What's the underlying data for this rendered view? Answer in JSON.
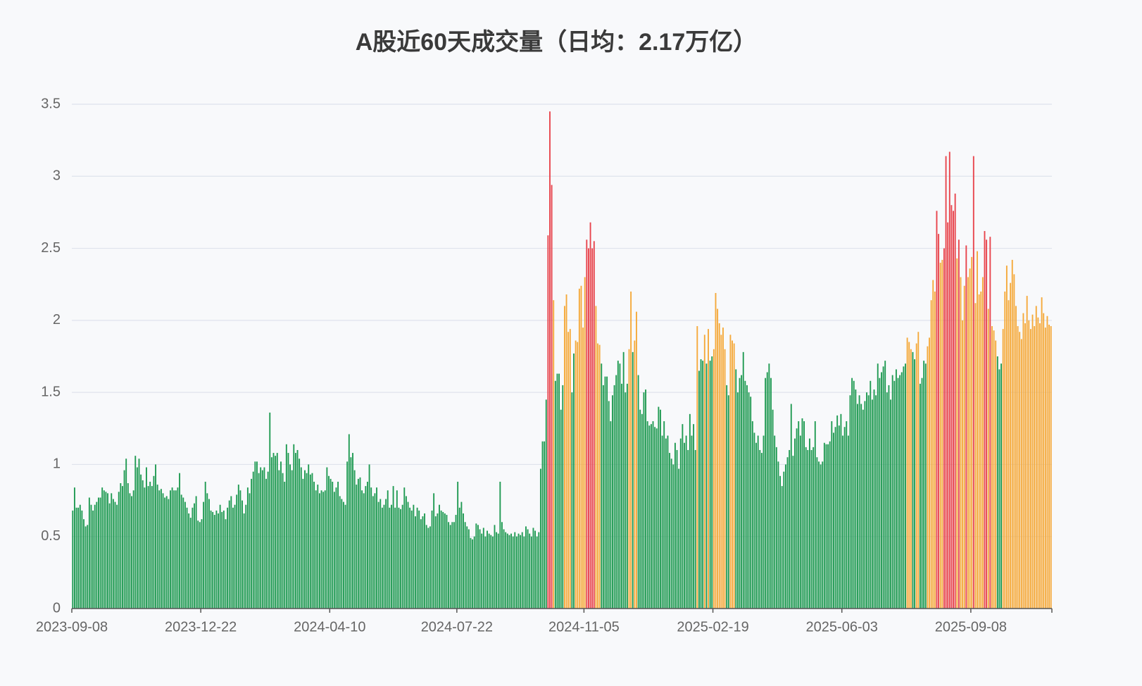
{
  "chart_data": {
    "type": "bar",
    "title": "A股近60天成交量（日均：2.17万亿）",
    "categories": [
      "2023-09-08",
      null,
      null,
      null,
      null,
      null,
      null,
      null,
      null,
      null,
      null,
      null,
      null,
      null,
      null,
      null,
      null,
      null,
      null,
      null,
      null,
      null,
      null,
      null,
      null,
      null,
      null,
      null,
      null,
      null,
      null,
      null,
      null,
      null,
      null,
      null,
      null,
      null,
      null,
      null,
      null,
      null,
      null,
      null,
      null,
      null,
      null,
      null,
      null,
      null,
      null,
      null,
      null,
      null,
      null,
      null,
      null,
      null,
      null,
      null,
      null,
      null,
      null,
      null,
      null,
      null,
      null,
      null,
      null,
      null,
      "2023-12-22",
      null,
      null,
      null,
      null,
      null,
      null,
      null,
      null,
      null,
      null,
      null,
      null,
      null,
      null,
      null,
      null,
      null,
      null,
      null,
      null,
      null,
      null,
      null,
      null,
      null,
      null,
      null,
      null,
      null,
      null,
      null,
      null,
      null,
      null,
      null,
      null,
      null,
      null,
      null,
      null,
      null,
      null,
      null,
      null,
      null,
      null,
      null,
      null,
      null,
      null,
      null,
      null,
      null,
      null,
      null,
      null,
      null,
      null,
      null,
      null,
      null,
      null,
      null,
      null,
      null,
      null,
      null,
      null,
      null,
      "2024-04-10",
      null,
      null,
      null,
      null,
      null,
      null,
      null,
      null,
      null,
      null,
      null,
      null,
      null,
      null,
      null,
      null,
      null,
      null,
      null,
      null,
      null,
      null,
      null,
      null,
      null,
      null,
      null,
      null,
      null,
      null,
      null,
      null,
      null,
      null,
      null,
      null,
      null,
      null,
      null,
      null,
      null,
      null,
      null,
      null,
      null,
      null,
      null,
      null,
      null,
      null,
      null,
      null,
      null,
      null,
      null,
      null,
      null,
      null,
      null,
      null,
      null,
      null,
      null,
      null,
      null,
      null,
      null,
      null,
      "2024-07-22",
      null,
      null,
      null,
      null,
      null,
      null,
      null,
      null,
      null,
      null,
      null,
      null,
      null,
      null,
      null,
      null,
      null,
      null,
      null,
      null,
      null,
      null,
      null,
      null,
      null,
      null,
      null,
      null,
      null,
      null,
      null,
      null,
      null,
      null,
      null,
      null,
      null,
      null,
      null,
      null,
      null,
      null,
      null,
      null,
      null,
      null,
      null,
      null,
      null,
      null,
      null,
      null,
      null,
      null,
      null,
      null,
      null,
      null,
      null,
      null,
      null,
      null,
      null,
      null,
      null,
      null,
      null,
      null,
      "2024-11-05",
      null,
      null,
      null,
      null,
      null,
      null,
      null,
      null,
      null,
      null,
      null,
      null,
      null,
      null,
      null,
      null,
      null,
      null,
      null,
      null,
      null,
      null,
      null,
      null,
      null,
      null,
      null,
      null,
      null,
      null,
      null,
      null,
      null,
      null,
      null,
      null,
      null,
      null,
      null,
      null,
      null,
      null,
      null,
      null,
      null,
      null,
      null,
      null,
      null,
      null,
      null,
      null,
      null,
      null,
      null,
      null,
      null,
      null,
      null,
      null,
      null,
      null,
      null,
      null,
      null,
      null,
      null,
      null,
      null,
      "2025-02-19",
      null,
      null,
      null,
      null,
      null,
      null,
      null,
      null,
      null,
      null,
      null,
      null,
      null,
      null,
      null,
      null,
      null,
      null,
      null,
      null,
      null,
      null,
      null,
      null,
      null,
      null,
      null,
      null,
      null,
      null,
      null,
      null,
      null,
      null,
      null,
      null,
      null,
      null,
      null,
      null,
      null,
      null,
      null,
      null,
      null,
      null,
      null,
      null,
      null,
      null,
      null,
      null,
      null,
      null,
      null,
      null,
      null,
      null,
      null,
      null,
      null,
      null,
      null,
      null,
      null,
      null,
      null,
      null,
      null,
      "2025-06-03",
      null,
      null,
      null,
      null,
      null,
      null,
      null,
      null,
      null,
      null,
      null,
      null,
      null,
      null,
      null,
      null,
      null,
      null,
      null,
      null,
      null,
      null,
      null,
      null,
      null,
      null,
      null,
      null,
      null,
      null,
      null,
      null,
      null,
      null,
      null,
      null,
      null,
      null,
      null,
      null,
      null,
      null,
      null,
      null,
      null,
      null,
      null,
      null,
      null,
      null,
      null,
      null,
      null,
      null,
      null,
      null,
      null,
      null,
      null,
      null,
      null,
      null,
      null,
      null,
      null,
      null,
      null,
      null,
      null,
      "2025-09-08",
      null,
      null,
      null,
      null,
      null,
      null,
      null,
      null,
      null,
      null,
      null,
      null,
      null,
      null,
      null,
      null,
      null,
      null,
      null,
      null,
      null,
      null,
      null,
      null,
      null,
      null,
      null,
      null,
      null,
      null,
      null,
      null,
      null,
      null,
      null,
      null,
      null,
      null,
      null,
      null,
      null,
      null,
      null
    ],
    "values": [
      0.68,
      0.84,
      0.7,
      0.7,
      0.72,
      0.68,
      0.62,
      0.57,
      0.58,
      0.77,
      0.72,
      0.68,
      0.72,
      0.74,
      0.77,
      0.77,
      0.84,
      0.82,
      0.81,
      0.8,
      0.73,
      0.8,
      0.76,
      0.74,
      0.72,
      0.81,
      0.87,
      0.85,
      0.96,
      1.04,
      0.87,
      0.8,
      0.78,
      0.82,
      1.06,
      0.98,
      1.04,
      0.93,
      0.89,
      0.84,
      0.98,
      0.85,
      0.88,
      0.85,
      0.92,
      1.0,
      0.86,
      0.82,
      0.83,
      0.8,
      0.77,
      0.78,
      0.76,
      0.82,
      0.84,
      0.82,
      0.82,
      0.84,
      0.94,
      0.79,
      0.77,
      0.74,
      0.7,
      0.66,
      0.63,
      0.7,
      0.73,
      0.78,
      0.61,
      0.6,
      0.62,
      0.74,
      0.88,
      0.8,
      0.76,
      0.68,
      0.67,
      0.65,
      0.68,
      0.66,
      0.72,
      0.67,
      0.68,
      0.62,
      0.7,
      0.75,
      0.78,
      0.7,
      0.72,
      0.79,
      0.86,
      0.82,
      0.75,
      0.66,
      0.72,
      0.84,
      0.8,
      0.9,
      0.95,
      1.02,
      1.02,
      0.94,
      0.98,
      0.96,
      0.98,
      0.9,
      0.95,
      1.36,
      1.05,
      1.08,
      1.06,
      1.08,
      0.96,
      1.02,
      0.94,
      0.88,
      1.14,
      1.08,
      1.0,
      0.96,
      1.14,
      1.08,
      1.1,
      1.04,
      0.98,
      0.9,
      0.96,
      0.94,
      1.0,
      0.93,
      0.94,
      0.88,
      0.82,
      0.86,
      0.8,
      0.82,
      0.81,
      0.82,
      0.98,
      0.92,
      0.9,
      0.88,
      0.81,
      0.84,
      0.88,
      0.78,
      0.76,
      0.74,
      0.72,
      1.02,
      1.21,
      1.05,
      1.08,
      0.96,
      0.86,
      0.9,
      0.91,
      0.82,
      0.8,
      0.85,
      0.88,
      1.0,
      0.84,
      0.78,
      0.8,
      0.84,
      0.74,
      0.76,
      0.7,
      0.72,
      0.76,
      0.82,
      0.7,
      0.72,
      0.85,
      0.7,
      0.82,
      0.7,
      0.69,
      0.72,
      0.84,
      0.78,
      0.74,
      0.7,
      0.68,
      0.72,
      0.64,
      0.7,
      0.68,
      0.62,
      0.64,
      0.66,
      0.58,
      0.56,
      0.57,
      0.68,
      0.8,
      0.64,
      0.66,
      0.72,
      0.68,
      0.67,
      0.66,
      0.65,
      0.6,
      0.58,
      0.6,
      0.6,
      0.65,
      0.88,
      0.7,
      0.74,
      0.66,
      0.6,
      0.57,
      0.55,
      0.49,
      0.48,
      0.5,
      0.59,
      0.58,
      0.55,
      0.52,
      0.56,
      0.5,
      0.54,
      0.52,
      0.51,
      0.5,
      0.58,
      0.53,
      0.52,
      0.88,
      0.6,
      0.55,
      0.53,
      0.52,
      0.51,
      0.52,
      0.5,
      0.53,
      0.5,
      0.52,
      0.51,
      0.53,
      0.5,
      0.57,
      0.55,
      0.52,
      0.5,
      0.56,
      0.54,
      0.5,
      0.53,
      0.97,
      1.16,
      1.16,
      1.45,
      2.59,
      3.45,
      2.94,
      2.14,
      1.58,
      1.63,
      1.63,
      1.38,
      1.55,
      2.1,
      2.18,
      1.92,
      1.94,
      1.5,
      1.77,
      1.86,
      1.85,
      2.22,
      2.24,
      1.95,
      2.3,
      2.56,
      2.5,
      2.68,
      2.5,
      2.55,
      2.1,
      1.84,
      1.83,
      1.7,
      1.55,
      1.61,
      1.61,
      1.44,
      1.3,
      1.48,
      1.55,
      1.62,
      1.72,
      1.7,
      1.56,
      1.78,
      1.5,
      1.56,
      1.8,
      2.2,
      1.78,
      1.86,
      2.06,
      1.62,
      1.38,
      1.35,
      1.5,
      1.52,
      1.3,
      1.27,
      1.28,
      1.3,
      1.26,
      1.25,
      1.4,
      1.38,
      1.2,
      1.3,
      1.18,
      1.2,
      1.08,
      1.04,
      1.0,
      1.15,
      1.1,
      0.97,
      1.18,
      1.28,
      1.15,
      1.2,
      1.1,
      1.35,
      1.2,
      1.28,
      1.1,
      1.96,
      1.65,
      1.73,
      1.72,
      1.9,
      1.7,
      1.94,
      1.72,
      1.75,
      1.8,
      2.19,
      2.08,
      1.98,
      1.9,
      1.95,
      1.8,
      1.55,
      1.48,
      1.9,
      1.86,
      1.84,
      1.66,
      1.5,
      1.6,
      1.62,
      1.78,
      1.58,
      1.55,
      1.5,
      1.47,
      1.3,
      1.22,
      1.15,
      1.2,
      1.1,
      1.08,
      1.2,
      1.6,
      1.64,
      1.7,
      1.6,
      1.38,
      1.2,
      1.12,
      1.02,
      0.92,
      0.85,
      0.95,
      1.0,
      1.05,
      1.1,
      1.42,
      1.06,
      1.18,
      1.25,
      1.3,
      1.2,
      1.32,
      1.3,
      1.12,
      1.1,
      1.18,
      1.1,
      1.12,
      1.3,
      1.05,
      1.02,
      1.0,
      1.02,
      1.15,
      1.14,
      1.14,
      1.16,
      1.3,
      1.22,
      1.26,
      1.34,
      1.27,
      1.35,
      1.2,
      1.26,
      1.3,
      1.2,
      1.48,
      1.6,
      1.58,
      1.52,
      1.42,
      1.48,
      1.42,
      1.38,
      1.44,
      1.5,
      1.48,
      1.58,
      1.45,
      1.52,
      1.48,
      1.7,
      1.6,
      1.64,
      1.68,
      1.72,
      1.5,
      1.55,
      1.45,
      1.62,
      1.58,
      1.66,
      1.6,
      1.62,
      1.64,
      1.68,
      1.7,
      1.88,
      1.85,
      1.8,
      1.78,
      1.73,
      1.84,
      1.92,
      1.56,
      1.6,
      1.72,
      1.7,
      1.82,
      1.88,
      2.14,
      2.28,
      2.2,
      2.76,
      2.6,
      2.4,
      2.42,
      2.5,
      3.14,
      2.68,
      3.17,
      2.8,
      2.76,
      2.88,
      2.43,
      2.56,
      2.3,
      2.0,
      2.24,
      2.52,
      2.3,
      2.36,
      2.44,
      3.14,
      2.12,
      2.48,
      2.18,
      2.2,
      2.3,
      2.62,
      2.56,
      2.08,
      2.58,
      1.96,
      1.93,
      1.86,
      1.75,
      1.66,
      1.7,
      1.94,
      2.2,
      2.38,
      2.14,
      2.26,
      2.42,
      2.32,
      2.1,
      1.96,
      1.92,
      1.87,
      2.05,
      1.98,
      2.17,
      2.0,
      1.94,
      2.04,
      1.96,
      2.1,
      2.02,
      1.98,
      2.16,
      2.05,
      1.95,
      2.03,
      1.97,
      1.96
    ],
    "color_rules": [
      {
        "min": 2.5,
        "color": "#e8444c"
      },
      {
        "min": 1.8,
        "color": "#f5a93a"
      },
      {
        "min": 0,
        "color": "#1f9a52"
      }
    ],
    "ylim": [
      0,
      3.5
    ],
    "yticks": [
      0,
      0.5,
      1,
      1.5,
      2,
      2.5,
      3,
      3.5
    ],
    "grid": true
  }
}
